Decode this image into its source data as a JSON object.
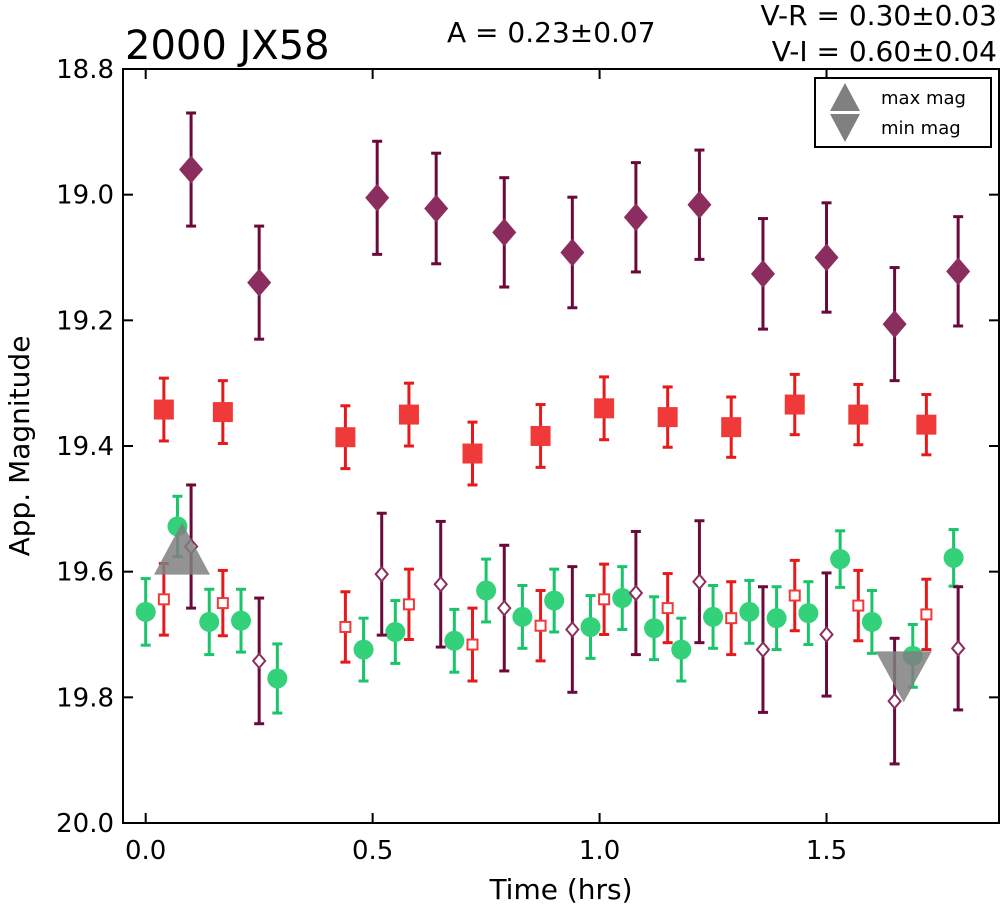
{
  "chart_data": {
    "type": "scatter",
    "title": "2000 JX58",
    "annotations": {
      "amplitude": "A  = 0.23±0.07",
      "vr": "V-R = 0.30±0.03",
      "vi": "V-I  = 0.60±0.04"
    },
    "xlabel": "Time (hrs)",
    "ylabel": "App. Magnitude",
    "xlim": [
      -0.05,
      1.88
    ],
    "ylim": [
      20.0,
      18.8
    ],
    "y_inverted": true,
    "xticks": [
      "0.0",
      "0.5",
      "1.0",
      "1.5"
    ],
    "xtick_values": [
      0.0,
      0.5,
      1.0,
      1.5
    ],
    "yticks": [
      "18.8",
      "19.0",
      "19.2",
      "19.4",
      "19.6",
      "19.8",
      "20.0"
    ],
    "ytick_values": [
      18.8,
      19.0,
      19.2,
      19.4,
      19.6,
      19.8,
      20.0
    ],
    "legend": {
      "placement": "top-right",
      "entries": [
        {
          "label": "max mag",
          "marker": "triangle-up",
          "color": "#808080"
        },
        {
          "label": "min mag",
          "marker": "triangle-down",
          "color": "#808080"
        }
      ]
    },
    "extrema_markers": [
      {
        "kind": "max",
        "x": 0.08,
        "y": 19.565,
        "color": "#808080"
      },
      {
        "kind": "min",
        "x": 1.67,
        "y": 19.765,
        "color": "#808080"
      }
    ],
    "series": [
      {
        "marker": "diamond-filled",
        "color": "#8b2d5e",
        "errcolor": "#6b0a3a",
        "points": [
          [
            0.1,
            18.96,
            0.09
          ],
          [
            0.25,
            19.14,
            0.09
          ],
          [
            0.51,
            19.005,
            0.09
          ],
          [
            0.64,
            19.022,
            0.088
          ],
          [
            0.79,
            19.06,
            0.087
          ],
          [
            0.94,
            19.092,
            0.088
          ],
          [
            1.08,
            19.036,
            0.087
          ],
          [
            1.22,
            19.016,
            0.087
          ],
          [
            1.36,
            19.126,
            0.088
          ],
          [
            1.5,
            19.1,
            0.087
          ],
          [
            1.65,
            19.206,
            0.09
          ],
          [
            1.79,
            19.122,
            0.087
          ]
        ]
      },
      {
        "marker": "square-filled",
        "color": "#f03a3a",
        "errcolor": "#e61a1a",
        "points": [
          [
            0.04,
            19.342,
            0.05
          ],
          [
            0.17,
            19.346,
            0.05
          ],
          [
            0.44,
            19.386,
            0.05
          ],
          [
            0.58,
            19.35,
            0.05
          ],
          [
            0.72,
            19.412,
            0.05
          ],
          [
            0.87,
            19.384,
            0.05
          ],
          [
            1.01,
            19.34,
            0.05
          ],
          [
            1.15,
            19.354,
            0.048
          ],
          [
            1.29,
            19.37,
            0.048
          ],
          [
            1.43,
            19.334,
            0.048
          ],
          [
            1.57,
            19.35,
            0.048
          ],
          [
            1.72,
            19.366,
            0.048
          ]
        ]
      },
      {
        "marker": "circle-filled",
        "color": "#33d17a",
        "errcolor": "#1ac46a",
        "points": [
          [
            0.0,
            19.664,
            0.053
          ],
          [
            0.07,
            19.528,
            0.048
          ],
          [
            0.14,
            19.68,
            0.052
          ],
          [
            0.21,
            19.678,
            0.05
          ],
          [
            0.29,
            19.77,
            0.055
          ],
          [
            0.48,
            19.724,
            0.05
          ],
          [
            0.55,
            19.696,
            0.05
          ],
          [
            0.68,
            19.71,
            0.05
          ],
          [
            0.75,
            19.63,
            0.05
          ],
          [
            0.83,
            19.672,
            0.05
          ],
          [
            0.9,
            19.646,
            0.05
          ],
          [
            0.98,
            19.688,
            0.05
          ],
          [
            1.05,
            19.642,
            0.05
          ],
          [
            1.12,
            19.69,
            0.05
          ],
          [
            1.18,
            19.724,
            0.05
          ],
          [
            1.25,
            19.672,
            0.05
          ],
          [
            1.33,
            19.664,
            0.05
          ],
          [
            1.39,
            19.674,
            0.05
          ],
          [
            1.46,
            19.666,
            0.05
          ],
          [
            1.53,
            19.58,
            0.045
          ],
          [
            1.6,
            19.68,
            0.05
          ],
          [
            1.69,
            19.734,
            0.05
          ],
          [
            1.78,
            19.578,
            0.045
          ]
        ]
      },
      {
        "marker": "diamond-open",
        "color": "#8b2d5e",
        "errcolor": "#6b0a3a",
        "points": [
          [
            0.1,
            19.56,
            0.098
          ],
          [
            0.25,
            19.742,
            0.1
          ],
          [
            0.52,
            19.604,
            0.097
          ],
          [
            0.65,
            19.62,
            0.1
          ],
          [
            0.79,
            19.658,
            0.1
          ],
          [
            0.94,
            19.692,
            0.1
          ],
          [
            1.08,
            19.634,
            0.098
          ],
          [
            1.22,
            19.616,
            0.097
          ],
          [
            1.36,
            19.724,
            0.1
          ],
          [
            1.5,
            19.7,
            0.098
          ],
          [
            1.65,
            19.806,
            0.1
          ],
          [
            1.79,
            19.722,
            0.098
          ]
        ]
      },
      {
        "marker": "square-open",
        "color": "#f03a3a",
        "errcolor": "#e61a1a",
        "points": [
          [
            0.04,
            19.644,
            0.057
          ],
          [
            0.17,
            19.65,
            0.052
          ],
          [
            0.44,
            19.688,
            0.056
          ],
          [
            0.58,
            19.652,
            0.056
          ],
          [
            0.72,
            19.716,
            0.058
          ],
          [
            0.87,
            19.686,
            0.056
          ],
          [
            1.01,
            19.644,
            0.056
          ],
          [
            1.15,
            19.658,
            0.055
          ],
          [
            1.29,
            19.674,
            0.058
          ],
          [
            1.43,
            19.638,
            0.056
          ],
          [
            1.57,
            19.654,
            0.056
          ],
          [
            1.72,
            19.668,
            0.056
          ]
        ]
      }
    ]
  }
}
